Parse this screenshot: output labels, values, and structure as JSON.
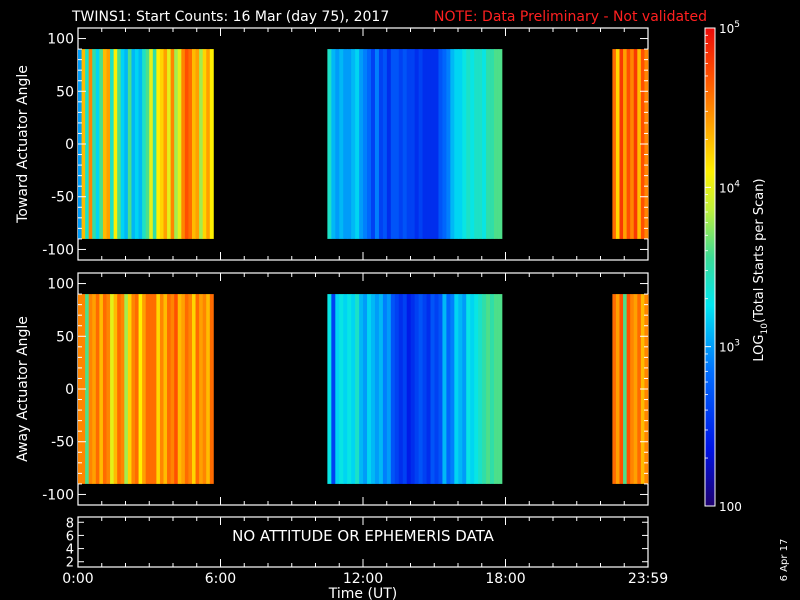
{
  "title": {
    "main": "TWINS1: Start Counts: 16 Mar (day  75), 2017",
    "note": "NOTE: Data Preliminary - Not validated",
    "note_color": "#ff2020"
  },
  "footer": {
    "time_label": "Time (UT)",
    "x_ticks": [
      "0:00",
      "6:00",
      "12:00",
      "18:00",
      "23:59"
    ],
    "date_stamp": "6 Apr 17",
    "no_data_message": "NO ATTITUDE OR EPHEMERIS DATA"
  },
  "colorbar": {
    "label_prefix": "LOG",
    "label_sub": "10",
    "label_rest": "(Total Starts per Scan)",
    "tick_labels": [
      {
        "base": "10",
        "exp": "5",
        "value": 100000
      },
      {
        "base": "10",
        "exp": "4",
        "value": 10000
      },
      {
        "base": "10",
        "exp": "3",
        "value": 1000
      },
      {
        "base": "100",
        "exp": "",
        "value": 100
      }
    ]
  },
  "chart_data": [
    {
      "type": "heatmap",
      "id": "toward",
      "ylabel": "Toward Actuator Angle",
      "y_ticks": [
        "100",
        "50",
        "0",
        "-50",
        "-100"
      ],
      "ylim": [
        -110,
        110
      ],
      "xlim_hours": [
        0,
        24
      ],
      "scale": "log",
      "zlim": [
        100,
        100000
      ],
      "data_y_range": [
        -90,
        90
      ],
      "segments": [
        {
          "start_hour": 0.0,
          "end_hour": 5.7,
          "cols": [
            3.0,
            4.3,
            3.4,
            4.5,
            3.5,
            3.2,
            3.6,
            4.3,
            4.4,
            3.4,
            4.1,
            3.6,
            3.2,
            3.1,
            3.6,
            3.1,
            3.2,
            3.1,
            3.4,
            3.6,
            4.0,
            3.5,
            4.1,
            4.2,
            4.4,
            4.0,
            4.5,
            3.8,
            4.0,
            4.5,
            4.7,
            4.6,
            4.3,
            4.4,
            3.8,
            4.2,
            4.4,
            4.1
          ]
        },
        {
          "start_hour": 10.5,
          "end_hour": 17.85,
          "cols": [
            3.4,
            3.1,
            3.0,
            3.1,
            3.0,
            3.0,
            3.1,
            3.2,
            3.0,
            2.9,
            2.8,
            2.6,
            2.9,
            2.6,
            2.7,
            2.5,
            2.7,
            2.7,
            2.6,
            2.7,
            2.6,
            2.6,
            2.5,
            2.6,
            2.5,
            2.5,
            2.5,
            2.5,
            2.7,
            2.8,
            2.9,
            3.1,
            3.2,
            3.2,
            3.3,
            3.4,
            3.3,
            3.4,
            3.4,
            3.3,
            3.5,
            3.5,
            3.6,
            3.6
          ]
        },
        {
          "start_hour": 22.5,
          "end_hour": 24.0,
          "cols": [
            4.6,
            4.2,
            4.8,
            4.4,
            4.7,
            4.5,
            4.8,
            4.3,
            4.7,
            4.5
          ]
        }
      ]
    },
    {
      "type": "heatmap",
      "id": "away",
      "ylabel": "Away Actuator Angle",
      "y_ticks": [
        "100",
        "50",
        "0",
        "-50",
        "-100"
      ],
      "ylim": [
        -110,
        110
      ],
      "xlim_hours": [
        0,
        24
      ],
      "scale": "log",
      "zlim": [
        100,
        100000
      ],
      "data_y_range": [
        -90,
        90
      ],
      "segments": [
        {
          "start_hour": 0.0,
          "end_hour": 5.7,
          "cols": [
            4.5,
            4.5,
            3.6,
            4.5,
            4.4,
            4.6,
            4.3,
            4.6,
            4.5,
            4.0,
            4.3,
            4.6,
            4.5,
            3.8,
            4.2,
            4.5,
            4.6,
            4.1,
            4.4,
            4.6,
            4.6,
            4.6,
            4.2,
            4.5,
            4.3,
            4.6,
            4.5,
            4.7,
            4.3,
            4.4,
            4.6,
            4.5,
            4.2,
            4.6,
            4.4,
            4.5,
            4.3,
            4.6
          ]
        },
        {
          "start_hour": 10.5,
          "end_hour": 17.85,
          "cols": [
            3.3,
            2.6,
            3.2,
            3.3,
            3.2,
            3.3,
            3.2,
            3.4,
            3.1,
            3.0,
            3.2,
            3.1,
            3.0,
            3.1,
            2.9,
            3.0,
            2.7,
            2.6,
            2.5,
            2.6,
            2.4,
            2.5,
            2.6,
            2.7,
            2.6,
            2.5,
            2.7,
            2.6,
            2.7,
            3.1,
            2.8,
            2.9,
            3.2,
            3.1,
            3.0,
            3.3,
            3.2,
            3.3,
            3.4,
            3.5,
            3.6,
            3.5,
            3.6,
            3.6
          ]
        },
        {
          "start_hour": 22.5,
          "end_hour": 24.0,
          "cols": [
            4.6,
            4.4,
            4.7,
            3.6,
            4.7,
            4.5,
            4.4,
            4.6,
            4.3,
            4.5
          ]
        }
      ]
    },
    {
      "type": "line",
      "id": "ephemeris",
      "y_ticks": [
        "8",
        "6",
        "4",
        "2"
      ],
      "ylim": [
        1.2,
        8.8
      ],
      "xlim_hours": [
        0,
        24
      ],
      "series": []
    }
  ]
}
